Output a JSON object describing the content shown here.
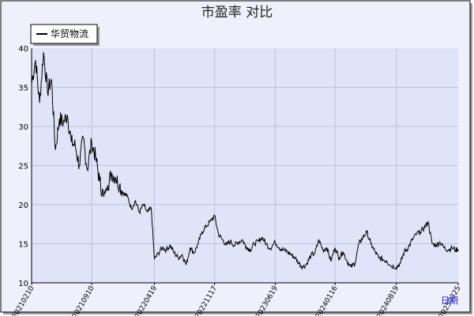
{
  "chart_data": {
    "type": "line",
    "title": "市盈率  对比",
    "xlabel": "日期",
    "ylabel": "",
    "ylim": [
      10,
      40
    ],
    "yticks": [
      "10",
      "15",
      "20",
      "25",
      "30",
      "35",
      "40"
    ],
    "x_tick_labels": [
      "20210210",
      "20210910",
      "20220419",
      "20221117",
      "20230619",
      "20240116",
      "20240819",
      "20250325"
    ],
    "grid": true,
    "legend_position": "top-left",
    "colors": {
      "background": "#ffffff",
      "outer_panel": "#f0f0fc",
      "plot_area": "#dfe4f8",
      "grid": "#b9c3e0",
      "line": "#000000",
      "axis_label": "#1a1aff"
    },
    "series": [
      {
        "name": "华贸物流",
        "x": [
          "20210210",
          "20210224",
          "20210310",
          "20210324",
          "20210407",
          "20210421",
          "20210505",
          "20210519",
          "20210602",
          "20210616",
          "20210630",
          "20210714",
          "20210728",
          "20210811",
          "20210825",
          "20210910",
          "20210924",
          "20211008",
          "20211022",
          "20211105",
          "20211119",
          "20211203",
          "20211217",
          "20211231",
          "20220114",
          "20220128",
          "20220211",
          "20220225",
          "20220311",
          "20220325",
          "20220408",
          "20220419",
          "20220503",
          "20220517",
          "20220531",
          "20220614",
          "20220628",
          "20220712",
          "20220726",
          "20220809",
          "20220823",
          "20220906",
          "20220920",
          "20221004",
          "20221018",
          "20221101",
          "20221117",
          "20221201",
          "20221215",
          "20221229",
          "20230112",
          "20230126",
          "20230209",
          "20230223",
          "20230309",
          "20230323",
          "20230406",
          "20230420",
          "20230504",
          "20230518",
          "20230601",
          "20230619",
          "20230703",
          "20230717",
          "20230731",
          "20230814",
          "20230828",
          "20230911",
          "20230925",
          "20231009",
          "20231023",
          "20231106",
          "20231120",
          "20231204",
          "20231218",
          "20240101",
          "20240116",
          "20240130",
          "20240213",
          "20240227",
          "20240312",
          "20240326",
          "20240409",
          "20240423",
          "20240507",
          "20240521",
          "20240604",
          "20240618",
          "20240702",
          "20240716",
          "20240730",
          "20240819",
          "20240902",
          "20240916",
          "20240930",
          "20241014",
          "20241028",
          "20241111",
          "20241125",
          "20241209",
          "20241223",
          "20250106",
          "20250120",
          "20250203",
          "20250217",
          "20250303",
          "20250317",
          "20250325"
        ],
        "values": [
          35.5,
          38.5,
          33.0,
          39.5,
          34.5,
          36.0,
          27.0,
          31.0,
          30.5,
          31.5,
          28.0,
          27.5,
          25.0,
          28.5,
          24.5,
          28.0,
          26.0,
          23.0,
          21.0,
          22.5,
          24.0,
          23.5,
          22.5,
          21.5,
          21.0,
          19.5,
          20.5,
          19.0,
          20.0,
          19.0,
          19.5,
          13.0,
          13.8,
          14.5,
          14.2,
          14.8,
          13.8,
          13.2,
          13.6,
          12.3,
          14.5,
          13.8,
          15.0,
          16.5,
          17.2,
          17.8,
          18.6,
          16.2,
          15.5,
          14.8,
          15.3,
          14.8,
          15.2,
          15.5,
          14.6,
          14.2,
          15.0,
          15.3,
          15.8,
          15.0,
          14.4,
          15.2,
          14.5,
          14.2,
          14.0,
          13.6,
          13.2,
          12.5,
          12.0,
          12.5,
          13.5,
          13.8,
          15.5,
          14.2,
          14.5,
          12.8,
          14.5,
          13.2,
          14.0,
          12.8,
          12.0,
          12.5,
          15.0,
          15.8,
          16.5,
          15.0,
          14.0,
          13.2,
          13.0,
          12.8,
          12.2,
          12.0,
          12.5,
          14.0,
          14.5,
          15.5,
          16.2,
          16.5,
          17.0,
          17.8,
          15.0,
          14.8,
          15.2,
          14.5,
          14.2,
          14.5,
          14.2,
          14.3
        ]
      }
    ]
  }
}
